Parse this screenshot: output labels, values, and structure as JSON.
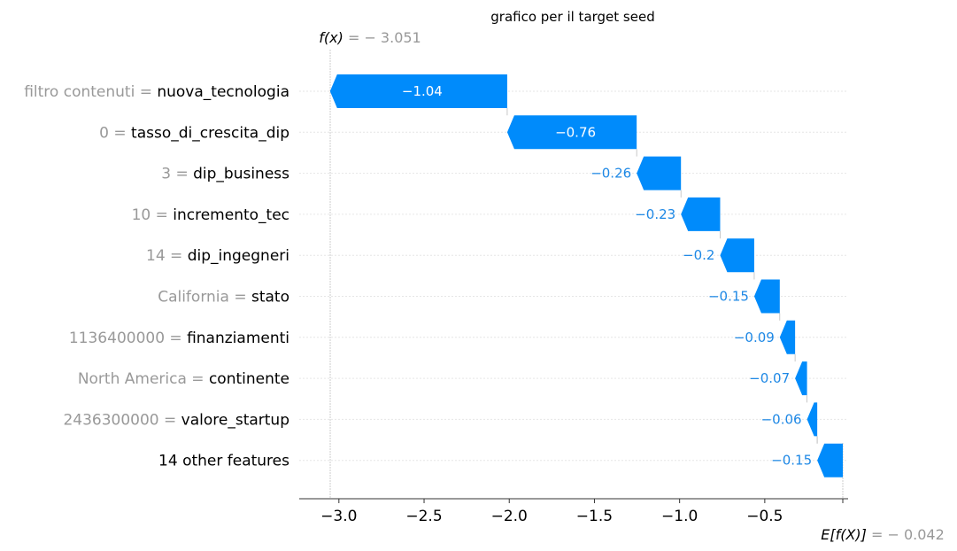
{
  "chart_data": {
    "type": "waterfall",
    "title": "grafico per il target seed",
    "fx": {
      "label": "f(x)",
      "value_text": " = − 3.051",
      "value": -3.051
    },
    "base": {
      "label": "E[f(X)]",
      "value_text": " = − 0.042",
      "value": -0.042
    },
    "features": [
      {
        "value_text": "filtro contenuti = ",
        "name": "nuova_tecnologia",
        "contribution": -1.04,
        "label": "−1.04"
      },
      {
        "value_text": "0 = ",
        "name": "tasso_di_crescita_dip",
        "contribution": -0.76,
        "label": "−0.76"
      },
      {
        "value_text": "3 = ",
        "name": "dip_business",
        "contribution": -0.26,
        "label": "−0.26"
      },
      {
        "value_text": "10 = ",
        "name": "incremento_tec",
        "contribution": -0.23,
        "label": "−0.23"
      },
      {
        "value_text": "14 = ",
        "name": "dip_ingegneri",
        "contribution": -0.2,
        "label": "−0.2"
      },
      {
        "value_text": "California = ",
        "name": "stato",
        "contribution": -0.15,
        "label": "−0.15"
      },
      {
        "value_text": "1136400000 = ",
        "name": "finanziamenti",
        "contribution": -0.09,
        "label": "−0.09"
      },
      {
        "value_text": "North America = ",
        "name": "continente",
        "contribution": -0.07,
        "label": "−0.07"
      },
      {
        "value_text": "2436300000 = ",
        "name": "valore_startup",
        "contribution": -0.06,
        "label": "−0.06"
      },
      {
        "value_text": "",
        "name": "14 other features",
        "contribution": -0.15,
        "label": "−0.15"
      }
    ],
    "x_ticks": [
      {
        "value": -3.0,
        "label": "−3.0"
      },
      {
        "value": -2.5,
        "label": "−2.5"
      },
      {
        "value": -2.0,
        "label": "−2.0"
      },
      {
        "value": -1.5,
        "label": "−1.5"
      },
      {
        "value": -1.0,
        "label": "−1.0"
      },
      {
        "value": -0.5,
        "label": "−0.5"
      }
    ],
    "xlim": [
      -3.19,
      -0.02
    ],
    "bar_color": "#008bfb",
    "negative_label_color": "#1e88e5"
  }
}
